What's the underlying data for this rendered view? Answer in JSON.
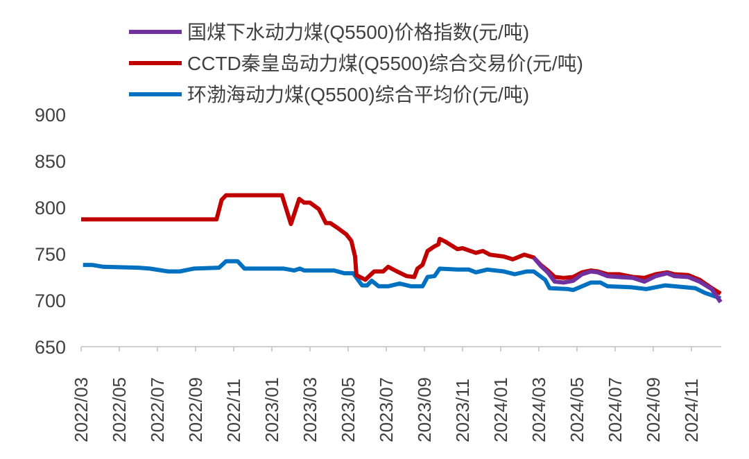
{
  "chart_data": {
    "type": "line",
    "title": "",
    "xlabel": "",
    "ylabel": "",
    "ylim": [
      650,
      900
    ],
    "yticks": [
      "650",
      "700",
      "750",
      "800",
      "850",
      "900"
    ],
    "xlim": [
      "2022-03-01",
      "2024-12-18"
    ],
    "xticks": [
      "2022/03",
      "2022/05",
      "2022/07",
      "2022/09",
      "2022/11",
      "2023/01",
      "2023/03",
      "2023/05",
      "2023/07",
      "2023/09",
      "2023/11",
      "2024/01",
      "2024/03",
      "2024/05",
      "2024/07",
      "2024/09",
      "2024/11"
    ],
    "grid": false,
    "legend_position": "top",
    "series": [
      {
        "name": "国煤下水动力煤(Q5500)价格指数(元/吨)",
        "color": "#7030A0",
        "x": [
          "2024-02-23",
          "2024-03-04",
          "2024-03-15",
          "2024-03-26",
          "2024-04-10",
          "2024-04-25",
          "2024-05-09",
          "2024-05-23",
          "2024-06-04",
          "2024-06-19",
          "2024-07-07",
          "2024-07-29",
          "2024-08-17",
          "2024-09-05",
          "2024-09-23",
          "2024-10-04",
          "2024-10-26",
          "2024-11-14",
          "2024-12-03",
          "2024-12-17"
        ],
        "y": [
          746,
          737,
          730,
          720,
          719,
          721,
          728,
          731,
          730,
          726,
          725,
          724,
          720,
          726,
          729,
          726,
          725,
          720,
          712,
          698
        ]
      },
      {
        "name": "CCTD秦皇岛动力煤(Q5500)综合交易价(元/吨)",
        "color": "#C00000",
        "x": [
          "2022-03-01",
          "2022-10-04",
          "2022-10-12",
          "2022-10-19",
          "2023-01-17",
          "2023-02-01",
          "2023-02-14",
          "2023-02-22",
          "2023-03-01",
          "2023-03-15",
          "2023-03-26",
          "2023-04-03",
          "2023-04-14",
          "2023-04-28",
          "2023-05-06",
          "2023-05-12",
          "2023-05-14",
          "2023-05-28",
          "2023-06-12",
          "2023-06-26",
          "2023-07-04",
          "2023-07-18",
          "2023-08-03",
          "2023-08-15",
          "2023-08-20",
          "2023-08-28",
          "2023-09-06",
          "2023-09-17",
          "2023-09-23",
          "2023-09-25",
          "2023-10-04",
          "2023-10-23",
          "2023-11-01",
          "2023-11-22",
          "2023-12-03",
          "2023-12-14",
          "2024-01-06",
          "2024-01-20",
          "2024-02-08",
          "2024-02-23",
          "2024-03-04",
          "2024-03-15",
          "2024-03-26",
          "2024-04-10",
          "2024-04-25",
          "2024-05-09",
          "2024-05-23",
          "2024-06-04",
          "2024-06-19",
          "2024-07-07",
          "2024-07-29",
          "2024-08-17",
          "2024-09-05",
          "2024-09-23",
          "2024-10-04",
          "2024-10-26",
          "2024-11-14",
          "2024-12-03",
          "2024-12-17"
        ],
        "y": [
          787,
          787,
          808,
          813,
          813,
          782,
          809,
          805,
          805,
          798,
          783,
          783,
          778,
          771,
          764,
          747,
          727,
          722,
          731,
          731,
          736,
          731,
          726,
          725,
          734,
          738,
          753,
          758,
          760,
          766,
          763,
          755,
          756,
          751,
          753,
          749,
          747,
          744,
          749,
          746,
          738,
          732,
          725,
          724,
          725,
          730,
          732,
          731,
          728,
          728,
          725,
          724,
          728,
          730,
          728,
          727,
          722,
          713,
          707
        ]
      },
      {
        "name": "环渤海动力煤(Q5500)综合平均价(元/吨)",
        "color": "#0070C0",
        "x": [
          "2022-03-04",
          "2022-03-18",
          "2022-04-06",
          "2022-06-01",
          "2022-06-19",
          "2022-07-18",
          "2022-08-06",
          "2022-08-28",
          "2022-10-08",
          "2022-10-19",
          "2022-11-07",
          "2022-11-18",
          "2023-01-20",
          "2023-02-06",
          "2023-02-15",
          "2023-02-22",
          "2023-04-09",
          "2023-04-25",
          "2023-05-09",
          "2023-05-23",
          "2023-06-01",
          "2023-06-08",
          "2023-06-19",
          "2023-07-04",
          "2023-07-22",
          "2023-08-10",
          "2023-08-28",
          "2023-09-06",
          "2023-09-17",
          "2023-09-25",
          "2023-10-23",
          "2023-11-11",
          "2023-11-22",
          "2023-12-10",
          "2024-01-06",
          "2024-01-23",
          "2024-02-12",
          "2024-02-23",
          "2024-03-11",
          "2024-03-18",
          "2024-04-17",
          "2024-04-25",
          "2024-05-09",
          "2024-05-23",
          "2024-06-08",
          "2024-06-19",
          "2024-07-25",
          "2024-08-20",
          "2024-09-20",
          "2024-11-07",
          "2024-11-22",
          "2024-12-17"
        ],
        "y": [
          738,
          738,
          736,
          735,
          734,
          731,
          731,
          734,
          735,
          742,
          742,
          734,
          734,
          732,
          734,
          732,
          732,
          729,
          729,
          716,
          716,
          721,
          715,
          715,
          718,
          715,
          715,
          725,
          726,
          734,
          733,
          733,
          730,
          733,
          731,
          728,
          731,
          731,
          722,
          713,
          712,
          711,
          715,
          719,
          719,
          715,
          714,
          712,
          716,
          713,
          708,
          702
        ]
      }
    ]
  }
}
